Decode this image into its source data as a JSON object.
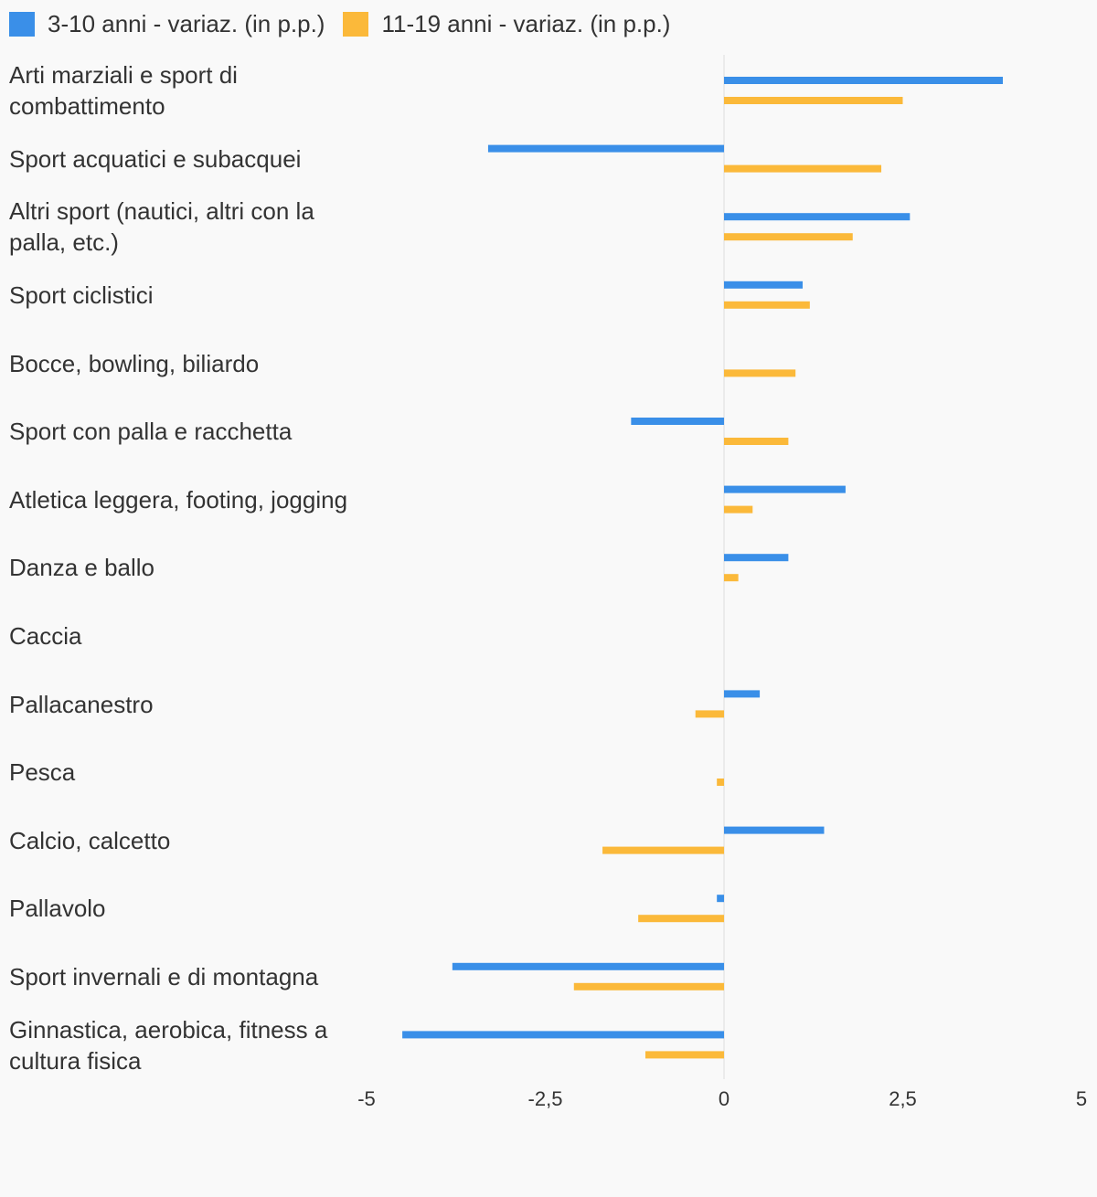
{
  "chart_data": {
    "type": "bar",
    "orientation": "horizontal",
    "categories": [
      "Arti marziali e sport di combattimento",
      "Sport acquatici e subacquei",
      "Altri sport (nautici, altri con la palla, etc.)",
      "Sport ciclistici",
      "Bocce, bowling, biliardo",
      "Sport con palla e racchetta",
      "Atletica leggera, footing, jogging",
      "Danza e ballo",
      "Caccia",
      "Pallacanestro",
      "Pesca",
      "Calcio, calcetto",
      "Pallavolo",
      "Sport invernali e di montagna",
      "Ginnastica, aerobica, fitness a cultura fisica"
    ],
    "series": [
      {
        "name": "3-10 anni - variaz. (in p.p.)",
        "color": "#3a8fe8",
        "values": [
          3.9,
          -3.3,
          2.6,
          1.1,
          0.0,
          -1.3,
          1.7,
          0.9,
          0.0,
          0.5,
          0.0,
          1.4,
          -0.1,
          -3.8,
          -4.5
        ]
      },
      {
        "name": "11-19 anni - variaz. (in p.p.)",
        "color": "#fbb93a",
        "values": [
          2.5,
          2.2,
          1.8,
          1.2,
          1.0,
          0.9,
          0.4,
          0.2,
          0.0,
          -0.4,
          -0.1,
          -1.7,
          -1.2,
          -2.1,
          -1.1
        ]
      }
    ],
    "xlim": [
      -5,
      5
    ],
    "xticks": [
      -5,
      -2.5,
      0,
      2.5,
      5
    ],
    "tick_labels": [
      "-5",
      "-2,5",
      "0",
      "2,5",
      "5"
    ],
    "legend_position": "top-left",
    "grid": false,
    "zero_line": true
  }
}
